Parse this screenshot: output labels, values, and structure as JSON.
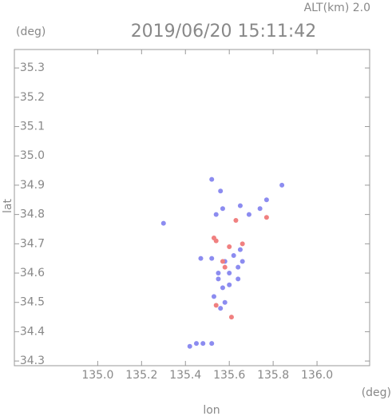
{
  "header": {
    "altitude": "ALT(km) 2.0",
    "lat_unit": "(deg)",
    "lon_unit": "(deg)"
  },
  "chart_data": {
    "type": "scatter",
    "title": "2019/06/20 15:11:42",
    "x_label": "lon",
    "y_label": "lat",
    "xlim": [
      134.62,
      136.24
    ],
    "ylim": [
      34.284,
      35.363
    ],
    "xticks": [
      {
        "value": 135.0,
        "label": "135.0"
      },
      135.2,
      135.4,
      135.6,
      135.8,
      {
        "value": 136.0,
        "label": "136.0"
      }
    ],
    "yticks": [
      35.3,
      35.2,
      35.1,
      {
        "value": 35.0,
        "label": "35.0"
      },
      34.9,
      34.8,
      34.7,
      34.6,
      34.5,
      34.4,
      34.3
    ],
    "series": [
      {
        "color": "#8c8cf0",
        "x": [
          135.42,
          135.45,
          135.48,
          135.52,
          135.3,
          135.52,
          135.56,
          135.54,
          135.57,
          135.65,
          135.69,
          135.74,
          135.77,
          135.84,
          135.47,
          135.52,
          135.58,
          135.62,
          135.65,
          135.55,
          135.6,
          135.64,
          135.57,
          135.6,
          135.53,
          135.58,
          135.56,
          135.64,
          135.66,
          135.55
        ],
        "values": [
          34.35,
          34.36,
          34.36,
          34.36,
          34.77,
          34.92,
          34.88,
          34.8,
          34.82,
          34.83,
          34.8,
          34.82,
          34.85,
          34.9,
          34.65,
          34.65,
          34.64,
          34.66,
          34.68,
          34.6,
          34.6,
          34.62,
          34.55,
          34.56,
          34.52,
          34.5,
          34.48,
          34.58,
          34.64,
          34.58
        ]
      },
      {
        "color": "#f08080",
        "x": [
          135.61,
          135.54,
          135.63,
          135.77,
          135.57,
          135.54,
          135.6,
          135.66,
          135.58,
          135.53
        ],
        "values": [
          34.45,
          34.71,
          34.78,
          34.79,
          34.64,
          34.49,
          34.69,
          34.7,
          34.62,
          34.72
        ]
      }
    ]
  }
}
